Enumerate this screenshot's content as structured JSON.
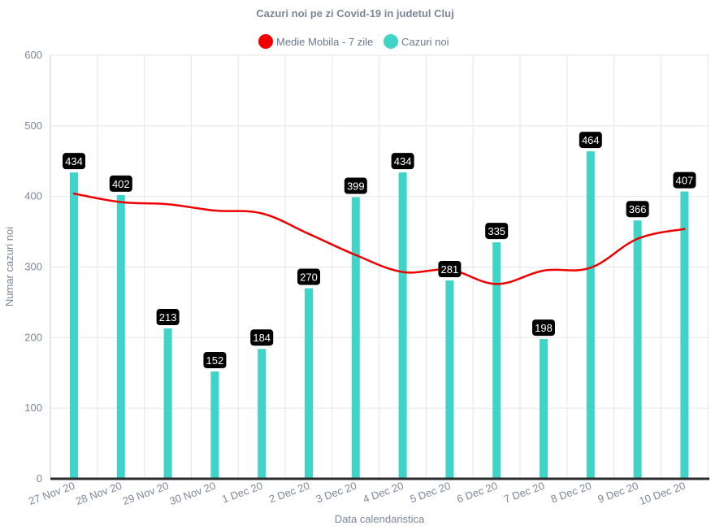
{
  "chart_data": {
    "type": "bar",
    "title": "Cazuri noi pe zi Covid-19 in judetul Cluj",
    "xlabel": "Data calendaristica",
    "ylabel": "Numar cazuri noi",
    "ylim": [
      0,
      600
    ],
    "yticks": [
      0,
      100,
      200,
      300,
      400,
      500,
      600
    ],
    "categories": [
      "27 Nov 20",
      "28 Nov 20",
      "29 Nov 20",
      "30 Nov 20",
      "1 Dec 20",
      "2 Dec 20",
      "3 Dec 20",
      "4 Dec 20",
      "5 Dec 20",
      "6 Dec 20",
      "7 Dec 20",
      "8 Dec 20",
      "9 Dec 20",
      "10 Dec 20"
    ],
    "legend_position": "top-center",
    "grid": true,
    "series": [
      {
        "name": "Medie Mobila - 7 zile",
        "type": "line",
        "color": "#ee0000",
        "values": [
          404,
          392,
          389,
          380,
          376,
          347,
          317,
          293,
          296,
          276,
          295,
          299,
          340,
          354
        ]
      },
      {
        "name": "Cazuri noi",
        "type": "bar",
        "color": "#40d4c8",
        "values": [
          434,
          402,
          213,
          152,
          184,
          270,
          399,
          434,
          281,
          335,
          198,
          464,
          366,
          407
        ],
        "data_labels": true
      }
    ]
  }
}
